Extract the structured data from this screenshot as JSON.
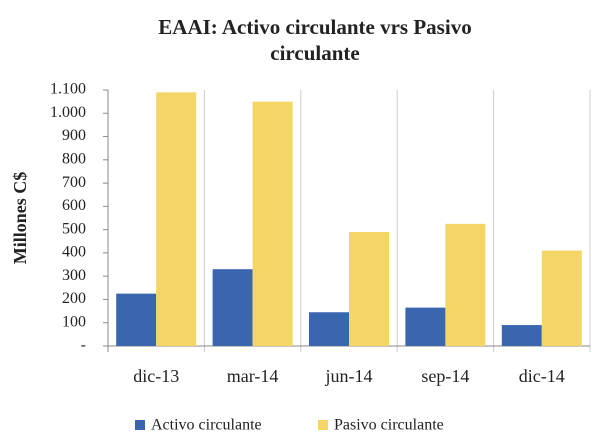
{
  "chart_data": {
    "type": "bar",
    "title": "EAAI: Activo circulante vrs Pasivo circulante",
    "y_label": "Millones C$",
    "categories": [
      "dic-13",
      "mar-14",
      "jun-14",
      "sep-14",
      "dic-14"
    ],
    "series": [
      {
        "name": "Activo circulante",
        "color": "#3a66b0",
        "values": [
          225,
          330,
          145,
          165,
          90
        ]
      },
      {
        "name": "Pasivo circulante",
        "color": "#f5d565",
        "values": [
          1090,
          1050,
          490,
          525,
          410
        ]
      }
    ],
    "ylim": [
      0,
      1100
    ],
    "yticks": [
      {
        "value": 0,
        "label": "-"
      },
      100,
      200,
      300,
      400,
      500,
      600,
      700,
      800,
      900,
      {
        "value": 1000,
        "label": "1.000"
      },
      {
        "value": 1100,
        "label": "1.100"
      }
    ]
  }
}
